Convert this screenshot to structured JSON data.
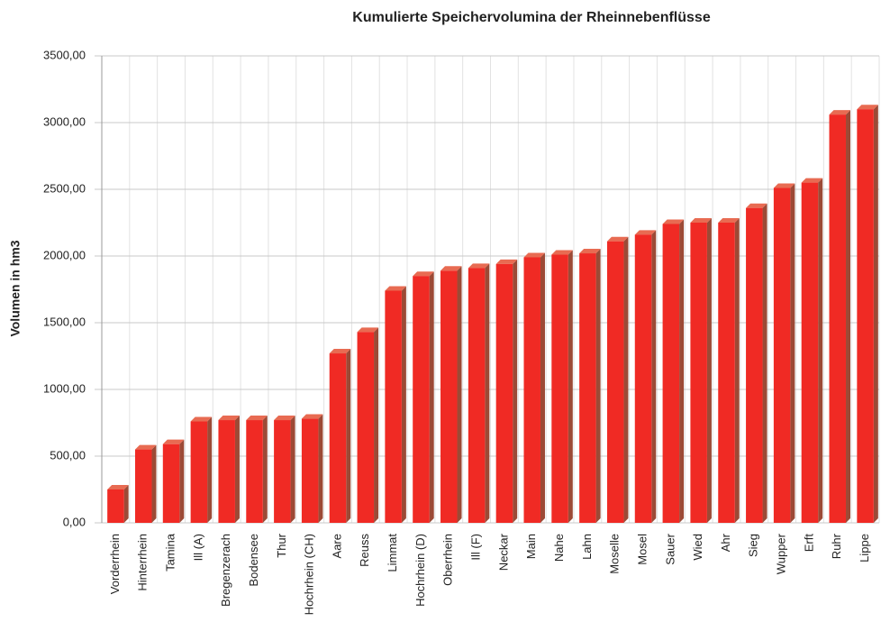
{
  "chart_data": {
    "type": "bar3d",
    "title": "Kumulierte Speichervolumina der Rheinnebenflüsse",
    "y_label": "Volumen in hm3",
    "categories": [
      "Vorderrhein",
      "Hinterrhein",
      "Tamina",
      "Ill (A)",
      "Bregenzerach",
      "Bodensee",
      "Thur",
      "Hochrhein (CH)",
      "Aare",
      "Reuss",
      "Limmat",
      "Hochrhein (D)",
      "Oberrhein",
      "Ill (F)",
      "Neckar",
      "Main",
      "Nahe",
      "Lahn",
      "Moselle",
      "Mosel",
      "Sauer",
      "Wied",
      "Ahr",
      "Sieg",
      "Wupper",
      "Erft",
      "Ruhr",
      "Lippe"
    ],
    "values": [
      250,
      550,
      590,
      760,
      770,
      770,
      770,
      780,
      1270,
      1430,
      1740,
      1850,
      1890,
      1910,
      1940,
      1990,
      2010,
      2020,
      2110,
      2160,
      2240,
      2250,
      2250,
      2360,
      2510,
      2550,
      3060,
      3100
    ],
    "color": "#f02a24",
    "ylim": [
      0,
      3500
    ],
    "yticks": [
      {
        "value": 0,
        "label": "0,00"
      },
      {
        "value": 500,
        "label": "500,00"
      },
      {
        "value": 1000,
        "label": "1000,00"
      },
      {
        "value": 1500,
        "label": "1500,00"
      },
      {
        "value": 2000,
        "label": "2000,00"
      },
      {
        "value": 2500,
        "label": "2500,00"
      },
      {
        "value": 3000,
        "label": "3000,00"
      },
      {
        "value": 3500,
        "label": "3500,00"
      }
    ],
    "grid": true
  }
}
